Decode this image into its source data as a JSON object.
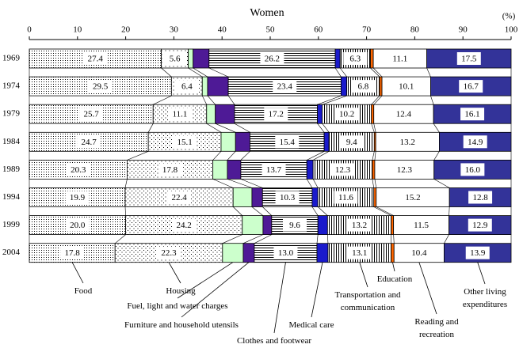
{
  "chart_data": {
    "type": "stacked-barh",
    "title": "Women",
    "xlabel": "(%)",
    "categories": [
      "1969",
      "1974",
      "1979",
      "1984",
      "1989",
      "1994",
      "1999",
      "2004"
    ],
    "xlim": [
      0,
      100
    ],
    "xticks": [
      0,
      10,
      20,
      30,
      40,
      50,
      60,
      70,
      80,
      90,
      100
    ],
    "series": [
      {
        "name": "Food",
        "color": "#000000",
        "pattern": "fine-dots",
        "values": [
          27.4,
          29.5,
          25.7,
          24.7,
          20.3,
          19.9,
          20.0,
          17.8
        ],
        "value_labels": [
          "27.4",
          "29.5",
          "25.7",
          "24.7",
          "20.3",
          "19.9",
          "20.0",
          "17.8"
        ]
      },
      {
        "name": "Housing",
        "color": "#000000",
        "pattern": "sparse-dots",
        "values": [
          5.6,
          6.4,
          11.1,
          15.1,
          17.8,
          22.4,
          24.2,
          22.3
        ],
        "value_labels": [
          "5.6",
          "6.4",
          "11.1",
          "15.1",
          "17.8",
          "22.4",
          "24.2",
          "22.3"
        ]
      },
      {
        "name": "Fuel, light and water charges",
        "color": "#ccffcc",
        "values": [
          1.0,
          1.1,
          1.8,
          3.0,
          3.0,
          3.9,
          4.3,
          4.3
        ]
      },
      {
        "name": "Furniture and household utensils",
        "color": "#4e1a96",
        "values": [
          3.3,
          4.3,
          4.0,
          3.0,
          2.8,
          2.2,
          1.8,
          2.3
        ]
      },
      {
        "name": "Clothes and footwear",
        "color": "#000000",
        "pattern": "h-lines",
        "values": [
          26.2,
          23.4,
          17.2,
          15.4,
          13.7,
          10.3,
          9.6,
          13.0
        ],
        "value_labels": [
          "26.2",
          "23.4",
          "17.2",
          "15.4",
          "13.7",
          "10.3",
          "9.6",
          "13.0"
        ]
      },
      {
        "name": "Medical care",
        "color": "#1a1acc",
        "values": [
          1.0,
          1.2,
          1.0,
          1.0,
          1.3,
          1.2,
          2.0,
          2.3
        ]
      },
      {
        "name": "Transportation and communication",
        "color": "#000000",
        "pattern": "v-lines",
        "values": [
          6.3,
          6.8,
          10.2,
          9.4,
          12.3,
          11.6,
          13.2,
          13.1
        ],
        "value_labels": [
          "6.3",
          "6.8",
          "10.2",
          "9.4",
          "12.3",
          "11.6",
          "13.2",
          "13.1"
        ]
      },
      {
        "name": "Education",
        "color": "#ff6600",
        "values": [
          0.6,
          0.5,
          0.5,
          0.3,
          0.5,
          0.5,
          0.5,
          0.6
        ]
      },
      {
        "name": "Reading and recreation",
        "color": "#ffffff",
        "values": [
          11.1,
          10.1,
          12.4,
          13.2,
          12.3,
          15.2,
          11.5,
          10.4
        ],
        "value_labels": [
          "11.1",
          "10.1",
          "12.4",
          "13.2",
          "12.3",
          "15.2",
          "11.5",
          "10.4"
        ]
      },
      {
        "name": "Other living expenditures",
        "color": "#333399",
        "values": [
          17.5,
          16.7,
          16.1,
          14.9,
          16.0,
          12.8,
          12.9,
          13.9
        ],
        "value_labels": [
          "17.5",
          "16.7",
          "16.1",
          "14.9",
          "16.0",
          "12.8",
          "12.9",
          "13.9"
        ]
      }
    ]
  }
}
